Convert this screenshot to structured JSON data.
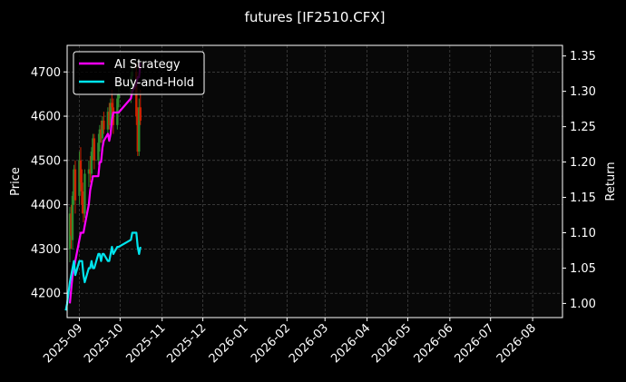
{
  "chart_data": {
    "type": "line",
    "title": "futures [IF2510.CFX]",
    "ylabel": "Price",
    "y2label": "Return",
    "x_ticks": [
      "2025-09-01",
      "2025-10-01",
      "2025-11-01",
      "2025-12-01",
      "2026-01-01",
      "2026-02-01",
      "2026-03-01",
      "2026-04-01",
      "2026-05-01",
      "2026-06-01",
      "2026-07-01",
      "2026-08-01"
    ],
    "x_tick_labels": [
      "2025-09",
      "2025-10",
      "2025-11",
      "2025-12",
      "2026-01",
      "2026-02",
      "2026-03",
      "2026-04",
      "2026-05",
      "2026-06",
      "2026-07",
      "2026-08"
    ],
    "xlim": [
      "2025-08-23",
      "2026-08-23"
    ],
    "y_ticks": [
      4200,
      4300,
      4400,
      4500,
      4600,
      4700
    ],
    "ylim": [
      4145,
      4760
    ],
    "y2_ticks": [
      1.0,
      1.05,
      1.1,
      1.15,
      1.2,
      1.25,
      1.3,
      1.35
    ],
    "y2lim": [
      0.98,
      1.365
    ],
    "grid": true,
    "legend_position": "top-left",
    "series": [
      {
        "name": "AI Strategy",
        "axis": "return",
        "color": "#ff00ff",
        "x": [
          "2025-08-25",
          "2025-08-26",
          "2025-08-27",
          "2025-08-28",
          "2025-08-29",
          "2025-09-01",
          "2025-09-02",
          "2025-09-03",
          "2025-09-04",
          "2025-09-05",
          "2025-09-08",
          "2025-09-09",
          "2025-09-10",
          "2025-09-11",
          "2025-09-12",
          "2025-09-15",
          "2025-09-16",
          "2025-09-17",
          "2025-09-18",
          "2025-09-19",
          "2025-09-22",
          "2025-09-23",
          "2025-09-24",
          "2025-09-25",
          "2025-09-26",
          "2025-09-29",
          "2025-09-30",
          "2025-10-09",
          "2025-10-10",
          "2025-10-13",
          "2025-10-14",
          "2025-10-15",
          "2025-10-16"
        ],
        "values": [
          1.0,
          1.02,
          1.04,
          1.05,
          1.06,
          1.09,
          1.1,
          1.1,
          1.1,
          1.11,
          1.14,
          1.16,
          1.17,
          1.18,
          1.18,
          1.18,
          1.2,
          1.2,
          1.22,
          1.23,
          1.24,
          1.23,
          1.24,
          1.26,
          1.27,
          1.27,
          1.27,
          1.29,
          1.3,
          1.31,
          1.32,
          1.32,
          1.34
        ]
      },
      {
        "name": "Buy-and-Hold",
        "axis": "return",
        "color": "#00e5ee",
        "x": [
          "2025-08-22",
          "2025-08-23",
          "2025-08-25",
          "2025-08-26",
          "2025-08-27",
          "2025-08-28",
          "2025-08-29",
          "2025-09-01",
          "2025-09-02",
          "2025-09-03",
          "2025-09-04",
          "2025-09-05",
          "2025-09-08",
          "2025-09-09",
          "2025-09-10",
          "2025-09-11",
          "2025-09-12",
          "2025-09-15",
          "2025-09-16",
          "2025-09-17",
          "2025-09-18",
          "2025-09-19",
          "2025-09-22",
          "2025-09-23",
          "2025-09-24",
          "2025-09-25",
          "2025-09-26",
          "2025-09-29",
          "2025-09-30",
          "2025-10-09",
          "2025-10-10",
          "2025-10-13",
          "2025-10-14",
          "2025-10-15",
          "2025-10-16"
        ],
        "values": [
          0.99,
          1.0,
          1.03,
          1.04,
          1.05,
          1.06,
          1.04,
          1.06,
          1.06,
          1.06,
          1.04,
          1.03,
          1.05,
          1.05,
          1.06,
          1.05,
          1.05,
          1.07,
          1.07,
          1.06,
          1.07,
          1.07,
          1.06,
          1.06,
          1.07,
          1.08,
          1.07,
          1.08,
          1.08,
          1.09,
          1.1,
          1.1,
          1.08,
          1.07,
          1.08
        ]
      }
    ],
    "candles": {
      "axis": "price",
      "up_color": "#2e8b2e",
      "down_color": "#cc2200",
      "data": [
        {
          "d": "2025-08-25",
          "o": 4300,
          "h": 4395,
          "l": 4270,
          "c": 4380
        },
        {
          "d": "2025-08-26",
          "o": 4380,
          "h": 4400,
          "l": 4300,
          "c": 4330
        },
        {
          "d": "2025-08-27",
          "o": 4320,
          "h": 4430,
          "l": 4300,
          "c": 4420
        },
        {
          "d": "2025-08-28",
          "o": 4420,
          "h": 4490,
          "l": 4400,
          "c": 4480
        },
        {
          "d": "2025-08-29",
          "o": 4480,
          "h": 4500,
          "l": 4380,
          "c": 4410
        },
        {
          "d": "2025-09-01",
          "o": 4420,
          "h": 4520,
          "l": 4400,
          "c": 4500
        },
        {
          "d": "2025-09-02",
          "o": 4500,
          "h": 4530,
          "l": 4430,
          "c": 4450
        },
        {
          "d": "2025-09-03",
          "o": 4450,
          "h": 4480,
          "l": 4380,
          "c": 4400
        },
        {
          "d": "2025-09-04",
          "o": 4400,
          "h": 4430,
          "l": 4360,
          "c": 4380
        },
        {
          "d": "2025-09-05",
          "o": 4380,
          "h": 4480,
          "l": 4370,
          "c": 4470
        },
        {
          "d": "2025-09-08",
          "o": 4470,
          "h": 4500,
          "l": 4440,
          "c": 4480
        },
        {
          "d": "2025-09-09",
          "o": 4480,
          "h": 4510,
          "l": 4450,
          "c": 4470
        },
        {
          "d": "2025-09-10",
          "o": 4470,
          "h": 4530,
          "l": 4460,
          "c": 4520
        },
        {
          "d": "2025-09-11",
          "o": 4520,
          "h": 4560,
          "l": 4500,
          "c": 4550
        },
        {
          "d": "2025-09-12",
          "o": 4550,
          "h": 4560,
          "l": 4480,
          "c": 4500
        },
        {
          "d": "2025-09-15",
          "o": 4500,
          "h": 4560,
          "l": 4490,
          "c": 4540
        },
        {
          "d": "2025-09-16",
          "o": 4540,
          "h": 4580,
          "l": 4520,
          "c": 4570
        },
        {
          "d": "2025-09-17",
          "o": 4570,
          "h": 4590,
          "l": 4540,
          "c": 4550
        },
        {
          "d": "2025-09-18",
          "o": 4550,
          "h": 4600,
          "l": 4530,
          "c": 4590
        },
        {
          "d": "2025-09-19",
          "o": 4590,
          "h": 4610,
          "l": 4560,
          "c": 4570
        },
        {
          "d": "2025-09-22",
          "o": 4570,
          "h": 4620,
          "l": 4560,
          "c": 4610
        },
        {
          "d": "2025-09-23",
          "o": 4610,
          "h": 4630,
          "l": 4570,
          "c": 4580
        },
        {
          "d": "2025-09-24",
          "o": 4580,
          "h": 4640,
          "l": 4570,
          "c": 4630
        },
        {
          "d": "2025-09-25",
          "o": 4630,
          "h": 4660,
          "l": 4600,
          "c": 4620
        },
        {
          "d": "2025-09-26",
          "o": 4620,
          "h": 4640,
          "l": 4560,
          "c": 4580
        },
        {
          "d": "2025-09-29",
          "o": 4580,
          "h": 4650,
          "l": 4570,
          "c": 4640
        },
        {
          "d": "2025-09-30",
          "o": 4640,
          "h": 4670,
          "l": 4620,
          "c": 4650
        },
        {
          "d": "2025-10-09",
          "o": 4650,
          "h": 4700,
          "l": 4630,
          "c": 4690
        },
        {
          "d": "2025-10-10",
          "o": 4690,
          "h": 4720,
          "l": 4660,
          "c": 4700
        },
        {
          "d": "2025-10-13",
          "o": 4700,
          "h": 4720,
          "l": 4580,
          "c": 4600
        },
        {
          "d": "2025-10-14",
          "o": 4600,
          "h": 4620,
          "l": 4510,
          "c": 4520
        },
        {
          "d": "2025-10-15",
          "o": 4520,
          "h": 4640,
          "l": 4510,
          "c": 4620
        },
        {
          "d": "2025-10-16",
          "o": 4620,
          "h": 4660,
          "l": 4580,
          "c": 4590
        }
      ]
    }
  }
}
